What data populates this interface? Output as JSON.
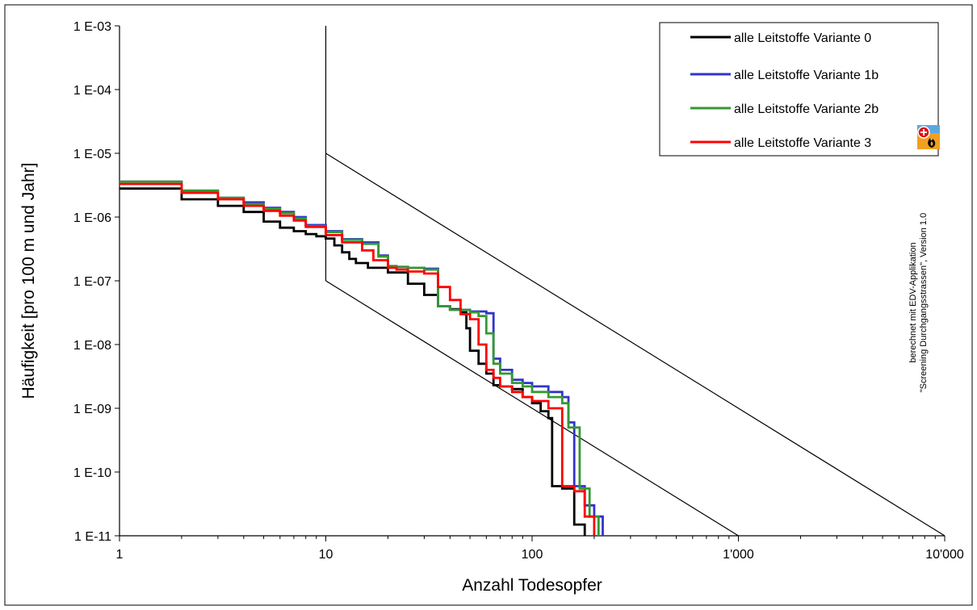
{
  "chart_data": {
    "type": "line",
    "xlabel": "Anzahl Todesopfer",
    "ylabel": "Häufigkeit [pro 100 m und Jahr]",
    "x_scale": "log",
    "y_scale": "log",
    "xlim": [
      1,
      10000
    ],
    "ylim": [
      1e-11,
      0.001
    ],
    "x_ticks": [
      {
        "value": 1,
        "label": "1"
      },
      {
        "value": 10,
        "label": "10"
      },
      {
        "value": 100,
        "label": "100"
      },
      {
        "value": 1000,
        "label": "1'000"
      },
      {
        "value": 10000,
        "label": "10'000"
      }
    ],
    "y_ticks": [
      {
        "value": 0.001,
        "label": "1 E-03"
      },
      {
        "value": 0.0001,
        "label": "1 E-04"
      },
      {
        "value": 1e-05,
        "label": "1 E-05"
      },
      {
        "value": 1e-06,
        "label": "1 E-06"
      },
      {
        "value": 1e-07,
        "label": "1 E-07"
      },
      {
        "value": 1e-08,
        "label": "1 E-08"
      },
      {
        "value": 1e-09,
        "label": "1 E-09"
      },
      {
        "value": 1e-10,
        "label": "1 E-10"
      },
      {
        "value": 1e-11,
        "label": "1 E-11"
      }
    ],
    "grid": false,
    "legend_position": "top-right",
    "annotation": [
      "berechnet mit EDV-Applikation",
      "\"Screening Durchgangsstrassen\", Version 1.0"
    ],
    "reference_lines": [
      {
        "name": "vertical-boundary",
        "x": [
          10,
          10
        ],
        "y": [
          1e-07,
          0.001
        ],
        "color": "#000000"
      },
      {
        "name": "upper-limit-line",
        "x": [
          10,
          10000
        ],
        "y": [
          1e-05,
          1e-11
        ],
        "color": "#000000"
      },
      {
        "name": "lower-limit-line",
        "x": [
          10,
          1000
        ],
        "y": [
          1e-07,
          1e-11
        ],
        "color": "#000000"
      }
    ],
    "series": [
      {
        "name": "alle Leitstoffe Variante 0",
        "color": "#000000",
        "x": [
          1,
          2,
          3,
          4,
          5,
          6,
          7,
          8,
          9,
          10,
          11,
          12,
          13,
          14,
          16,
          20,
          25,
          30,
          35,
          40,
          45,
          48,
          50,
          55,
          60,
          65,
          70,
          80,
          90,
          100,
          110,
          120,
          125,
          140,
          160,
          180
        ],
        "y": [
          2.8e-06,
          1.9e-06,
          1.5e-06,
          1.2e-06,
          8.5e-07,
          6.8e-07,
          6e-07,
          5.4e-07,
          5e-07,
          4.6e-07,
          3.6e-07,
          2.8e-07,
          2.2e-07,
          1.9e-07,
          1.6e-07,
          1.35e-07,
          9e-08,
          6e-08,
          4e-08,
          3.6e-08,
          3.2e-08,
          1.8e-08,
          8e-09,
          5e-09,
          3.5e-09,
          2.3e-09,
          2.2e-09,
          2e-09,
          1.5e-09,
          1.2e-09,
          9e-10,
          7e-10,
          6e-11,
          5.5e-11,
          1.5e-11,
          1e-11
        ]
      },
      {
        "name": "alle Leitstoffe Variante 1b",
        "color": "#3333cc",
        "x": [
          1,
          2,
          3,
          4,
          5,
          6,
          7,
          8,
          10,
          12,
          15,
          18,
          20,
          22,
          25,
          30,
          35,
          40,
          50,
          60,
          65,
          70,
          80,
          90,
          100,
          120,
          140,
          150,
          160,
          180,
          200,
          220
        ],
        "y": [
          3.6e-06,
          2.5e-06,
          2e-06,
          1.7e-06,
          1.4e-06,
          1.2e-06,
          1e-06,
          7.5e-07,
          6e-07,
          4.5e-07,
          4e-07,
          2.5e-07,
          1.7e-07,
          1.65e-07,
          1.6e-07,
          1.55e-07,
          4e-08,
          3.5e-08,
          3.3e-08,
          3.1e-08,
          6e-09,
          4e-09,
          2.8e-09,
          2.5e-09,
          2.2e-09,
          1.8e-09,
          1.5e-09,
          6e-10,
          6e-11,
          3e-11,
          2e-11,
          1e-11
        ]
      },
      {
        "name": "alle Leitstoffe Variante 2b",
        "color": "#339933",
        "x": [
          1,
          2,
          3,
          4,
          5,
          6,
          7,
          8,
          10,
          12,
          15,
          18,
          20,
          22,
          25,
          30,
          35,
          40,
          50,
          55,
          60,
          65,
          70,
          80,
          90,
          100,
          120,
          140,
          150,
          170,
          190,
          210
        ],
        "y": [
          3.6e-06,
          2.6e-06,
          2e-06,
          1.6e-06,
          1.35e-06,
          1.15e-06,
          9.5e-07,
          7.2e-07,
          5.8e-07,
          4.4e-07,
          3.8e-07,
          2.4e-07,
          1.7e-07,
          1.65e-07,
          1.6e-07,
          1.5e-07,
          4e-08,
          3.5e-08,
          3.2e-08,
          2.8e-08,
          1.5e-08,
          5e-09,
          3.5e-09,
          2.5e-09,
          2.2e-09,
          1.8e-09,
          1.5e-09,
          1.2e-09,
          5e-10,
          5.5e-11,
          2e-11,
          1e-11
        ]
      },
      {
        "name": "alle Leitstoffe Variante 3",
        "color": "#ff0000",
        "x": [
          1,
          2,
          3,
          4,
          5,
          6,
          7,
          8,
          10,
          12,
          15,
          17,
          20,
          22,
          25,
          30,
          35,
          40,
          45,
          50,
          55,
          60,
          65,
          70,
          80,
          90,
          100,
          120,
          140,
          160,
          180,
          200
        ],
        "y": [
          3.3e-06,
          2.4e-06,
          1.9e-06,
          1.5e-06,
          1.25e-06,
          1.05e-06,
          8.8e-07,
          7e-07,
          5.2e-07,
          4e-07,
          3e-07,
          2.1e-07,
          1.6e-07,
          1.5e-07,
          1.4e-07,
          1.3e-07,
          8e-08,
          5e-08,
          3e-08,
          2.5e-08,
          1e-08,
          4e-09,
          3e-09,
          2.2e-09,
          1.8e-09,
          1.5e-09,
          1.3e-09,
          1e-09,
          6e-11,
          5e-11,
          2e-11,
          1e-11
        ]
      }
    ]
  }
}
